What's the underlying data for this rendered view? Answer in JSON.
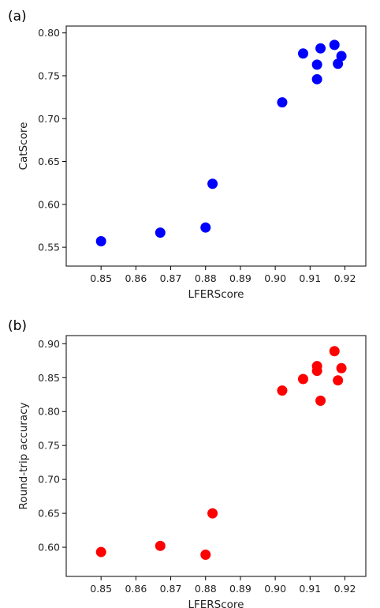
{
  "chart_data": [
    {
      "type": "scatter",
      "panel_label": "(a)",
      "xlabel": "LFERScore",
      "ylabel": "CatScore",
      "xlim": [
        0.84,
        0.926
      ],
      "ylim": [
        0.528,
        0.808
      ],
      "xticks": [
        "0.85",
        "0.86",
        "0.87",
        "0.88",
        "0.89",
        "0.90",
        "0.91",
        "0.92"
      ],
      "xtick_values": [
        0.85,
        0.86,
        0.87,
        0.88,
        0.89,
        0.9,
        0.91,
        0.92
      ],
      "yticks": [
        "0.55",
        "0.60",
        "0.65",
        "0.70",
        "0.75",
        "0.80"
      ],
      "ytick_values": [
        0.55,
        0.6,
        0.65,
        0.7,
        0.75,
        0.8
      ],
      "grid": false,
      "color": "#0000ff",
      "points": [
        {
          "x": 0.85,
          "y": 0.557
        },
        {
          "x": 0.867,
          "y": 0.567
        },
        {
          "x": 0.88,
          "y": 0.573
        },
        {
          "x": 0.882,
          "y": 0.624
        },
        {
          "x": 0.902,
          "y": 0.719
        },
        {
          "x": 0.908,
          "y": 0.776
        },
        {
          "x": 0.912,
          "y": 0.746
        },
        {
          "x": 0.912,
          "y": 0.763
        },
        {
          "x": 0.913,
          "y": 0.782
        },
        {
          "x": 0.917,
          "y": 0.786
        },
        {
          "x": 0.918,
          "y": 0.764
        },
        {
          "x": 0.919,
          "y": 0.773
        }
      ]
    },
    {
      "type": "scatter",
      "panel_label": "(b)",
      "xlabel": "LFERScore",
      "ylabel": "Round-trip accuracy",
      "xlim": [
        0.84,
        0.926
      ],
      "ylim": [
        0.557,
        0.912
      ],
      "xticks": [
        "0.85",
        "0.86",
        "0.87",
        "0.88",
        "0.89",
        "0.90",
        "0.91",
        "0.92"
      ],
      "xtick_values": [
        0.85,
        0.86,
        0.87,
        0.88,
        0.89,
        0.9,
        0.91,
        0.92
      ],
      "yticks": [
        "0.60",
        "0.65",
        "0.70",
        "0.75",
        "0.80",
        "0.85",
        "0.90"
      ],
      "ytick_values": [
        0.6,
        0.65,
        0.7,
        0.75,
        0.8,
        0.85,
        0.9
      ],
      "grid": false,
      "color": "#ff0000",
      "points": [
        {
          "x": 0.85,
          "y": 0.593
        },
        {
          "x": 0.867,
          "y": 0.602
        },
        {
          "x": 0.88,
          "y": 0.589
        },
        {
          "x": 0.882,
          "y": 0.65
        },
        {
          "x": 0.902,
          "y": 0.831
        },
        {
          "x": 0.908,
          "y": 0.848
        },
        {
          "x": 0.912,
          "y": 0.867
        },
        {
          "x": 0.912,
          "y": 0.86
        },
        {
          "x": 0.913,
          "y": 0.816
        },
        {
          "x": 0.917,
          "y": 0.889
        },
        {
          "x": 0.918,
          "y": 0.846
        },
        {
          "x": 0.919,
          "y": 0.864
        }
      ]
    }
  ]
}
